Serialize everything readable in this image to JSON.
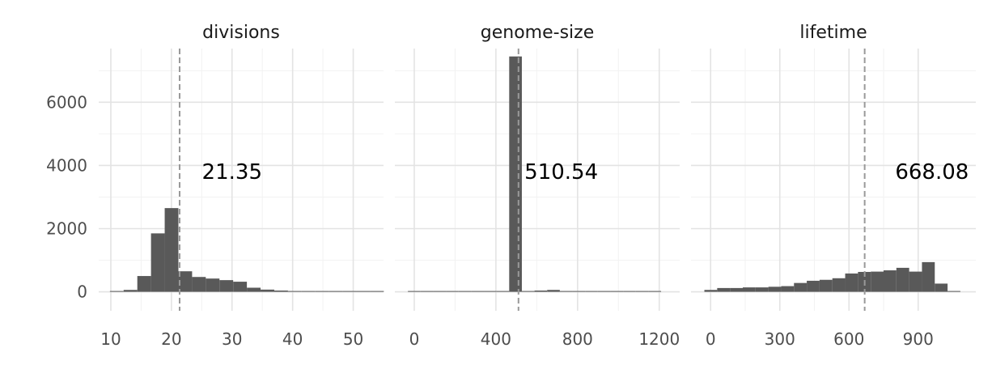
{
  "chart_data": {
    "type": "bar",
    "subtype": "faceted-histogram",
    "grid": true,
    "shared_y_axis": true,
    "ylim": [
      -600,
      7700
    ],
    "y_ticks": [
      0,
      2000,
      4000,
      6000
    ],
    "y_tick_labels": [
      "0",
      "2000",
      "4000",
      "6000"
    ],
    "bar_color": "#595959",
    "vline_color": "#999999",
    "vline_style": "dashed",
    "facets": [
      {
        "title": "divisions",
        "xlim": [
          8,
          55
        ],
        "x_ticks": [
          10,
          20,
          30,
          40,
          50
        ],
        "x_tick_labels": [
          "10",
          "20",
          "30",
          "40",
          "50"
        ],
        "bin_width": 2.26,
        "bin_starts": [
          9.85,
          12.11,
          14.37,
          16.63,
          18.89,
          21.15,
          23.41,
          25.67,
          27.93,
          30.19,
          32.45,
          34.71,
          36.97,
          39.23,
          41.49,
          43.75,
          46.01,
          48.27,
          50.53,
          52.79
        ],
        "counts": [
          10,
          60,
          500,
          1850,
          2650,
          650,
          470,
          420,
          370,
          320,
          130,
          70,
          40,
          20,
          15,
          10,
          8,
          5,
          5,
          5
        ],
        "mean": 21.35,
        "mean_label": "21.35",
        "label_x": 30.0,
        "label_y": 3800
      },
      {
        "title": "genome-size",
        "xlim": [
          -95,
          1300
        ],
        "x_ticks": [
          0,
          400,
          800,
          1200
        ],
        "x_tick_labels": [
          "0",
          "400",
          "800",
          "1200"
        ],
        "bin_width": 62,
        "bin_starts": [
          -31,
          31,
          93,
          155,
          217,
          279,
          341,
          403,
          465,
          527,
          589,
          651,
          713,
          775,
          837,
          899,
          961,
          1023,
          1085,
          1147
        ],
        "counts": [
          15,
          0,
          0,
          0,
          0,
          15,
          0,
          0,
          7450,
          10,
          40,
          60,
          15,
          0,
          0,
          0,
          10,
          10,
          0,
          10
        ],
        "mean": 510.54,
        "mean_label": "510.54",
        "label_x": 720,
        "label_y": 3800
      },
      {
        "title": "lifetime",
        "xlim": [
          -85,
          1150
        ],
        "x_ticks": [
          0,
          300,
          600,
          900
        ],
        "x_tick_labels": [
          "0",
          "300",
          "600",
          "900"
        ],
        "bin_width": 55.5,
        "bin_starts": [
          -27,
          28.5,
          84,
          139.5,
          195,
          250.5,
          306,
          361.5,
          417,
          472.5,
          528,
          583.5,
          639,
          694.5,
          750,
          805.5,
          861,
          916.5,
          972,
          1027.5
        ],
        "counts": [
          60,
          120,
          120,
          140,
          140,
          160,
          180,
          280,
          350,
          380,
          430,
          580,
          630,
          640,
          680,
          760,
          640,
          940,
          260,
          10
        ],
        "mean": 668.08,
        "mean_label": "668.08",
        "label_x": 960,
        "label_y": 3800
      }
    ]
  }
}
